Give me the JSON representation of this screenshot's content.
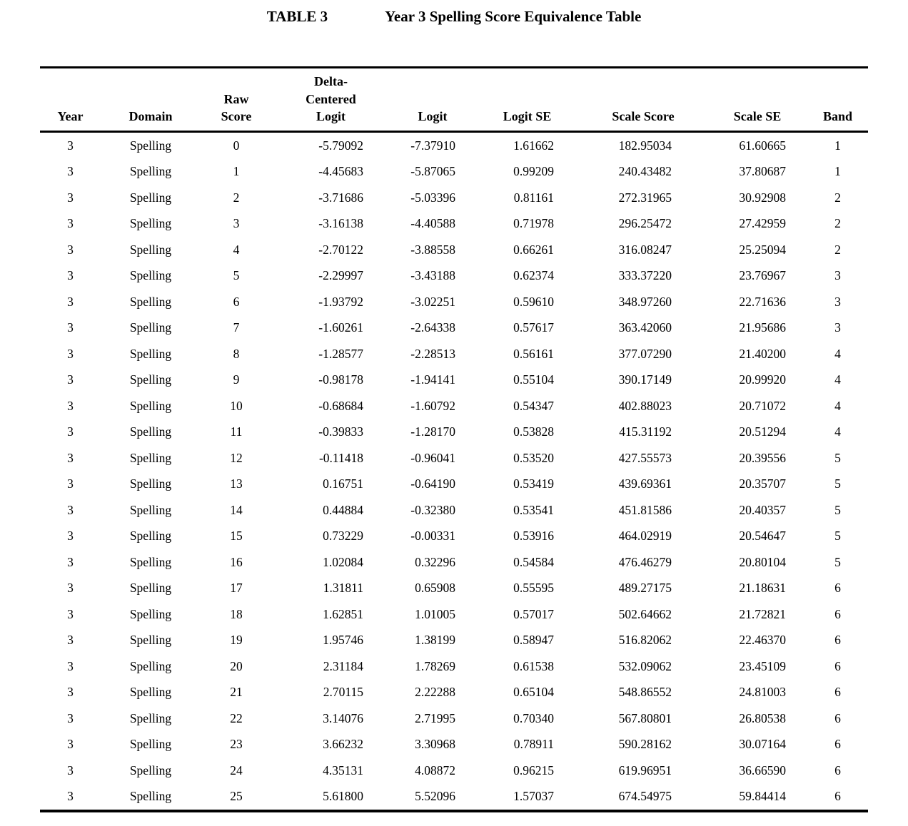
{
  "title": {
    "label": "TABLE 3",
    "caption": "Year 3 Spelling Score Equivalence Table"
  },
  "table": {
    "columns": [
      "Year",
      "Domain",
      "Raw\nScore",
      "Delta-\nCentered\nLogit",
      "Logit",
      "Logit SE",
      "Scale Score",
      "Scale SE",
      "Band"
    ],
    "rows": [
      [
        "3",
        "Spelling",
        "0",
        "-5.79092",
        "-7.37910",
        "1.61662",
        "182.95034",
        "61.60665",
        "1"
      ],
      [
        "3",
        "Spelling",
        "1",
        "-4.45683",
        "-5.87065",
        "0.99209",
        "240.43482",
        "37.80687",
        "1"
      ],
      [
        "3",
        "Spelling",
        "2",
        "-3.71686",
        "-5.03396",
        "0.81161",
        "272.31965",
        "30.92908",
        "2"
      ],
      [
        "3",
        "Spelling",
        "3",
        "-3.16138",
        "-4.40588",
        "0.71978",
        "296.25472",
        "27.42959",
        "2"
      ],
      [
        "3",
        "Spelling",
        "4",
        "-2.70122",
        "-3.88558",
        "0.66261",
        "316.08247",
        "25.25094",
        "2"
      ],
      [
        "3",
        "Spelling",
        "5",
        "-2.29997",
        "-3.43188",
        "0.62374",
        "333.37220",
        "23.76967",
        "3"
      ],
      [
        "3",
        "Spelling",
        "6",
        "-1.93792",
        "-3.02251",
        "0.59610",
        "348.97260",
        "22.71636",
        "3"
      ],
      [
        "3",
        "Spelling",
        "7",
        "-1.60261",
        "-2.64338",
        "0.57617",
        "363.42060",
        "21.95686",
        "3"
      ],
      [
        "3",
        "Spelling",
        "8",
        "-1.28577",
        "-2.28513",
        "0.56161",
        "377.07290",
        "21.40200",
        "4"
      ],
      [
        "3",
        "Spelling",
        "9",
        "-0.98178",
        "-1.94141",
        "0.55104",
        "390.17149",
        "20.99920",
        "4"
      ],
      [
        "3",
        "Spelling",
        "10",
        "-0.68684",
        "-1.60792",
        "0.54347",
        "402.88023",
        "20.71072",
        "4"
      ],
      [
        "3",
        "Spelling",
        "11",
        "-0.39833",
        "-1.28170",
        "0.53828",
        "415.31192",
        "20.51294",
        "4"
      ],
      [
        "3",
        "Spelling",
        "12",
        "-0.11418",
        "-0.96041",
        "0.53520",
        "427.55573",
        "20.39556",
        "5"
      ],
      [
        "3",
        "Spelling",
        "13",
        "0.16751",
        "-0.64190",
        "0.53419",
        "439.69361",
        "20.35707",
        "5"
      ],
      [
        "3",
        "Spelling",
        "14",
        "0.44884",
        "-0.32380",
        "0.53541",
        "451.81586",
        "20.40357",
        "5"
      ],
      [
        "3",
        "Spelling",
        "15",
        "0.73229",
        "-0.00331",
        "0.53916",
        "464.02919",
        "20.54647",
        "5"
      ],
      [
        "3",
        "Spelling",
        "16",
        "1.02084",
        "0.32296",
        "0.54584",
        "476.46279",
        "20.80104",
        "5"
      ],
      [
        "3",
        "Spelling",
        "17",
        "1.31811",
        "0.65908",
        "0.55595",
        "489.27175",
        "21.18631",
        "6"
      ],
      [
        "3",
        "Spelling",
        "18",
        "1.62851",
        "1.01005",
        "0.57017",
        "502.64662",
        "21.72821",
        "6"
      ],
      [
        "3",
        "Spelling",
        "19",
        "1.95746",
        "1.38199",
        "0.58947",
        "516.82062",
        "22.46370",
        "6"
      ],
      [
        "3",
        "Spelling",
        "20",
        "2.31184",
        "1.78269",
        "0.61538",
        "532.09062",
        "23.45109",
        "6"
      ],
      [
        "3",
        "Spelling",
        "21",
        "2.70115",
        "2.22288",
        "0.65104",
        "548.86552",
        "24.81003",
        "6"
      ],
      [
        "3",
        "Spelling",
        "22",
        "3.14076",
        "2.71995",
        "0.70340",
        "567.80801",
        "26.80538",
        "6"
      ],
      [
        "3",
        "Spelling",
        "23",
        "3.66232",
        "3.30968",
        "0.78911",
        "590.28162",
        "30.07164",
        "6"
      ],
      [
        "3",
        "Spelling",
        "24",
        "4.35131",
        "4.08872",
        "0.96215",
        "619.96951",
        "36.66590",
        "6"
      ],
      [
        "3",
        "Spelling",
        "25",
        "5.61800",
        "5.52096",
        "1.57037",
        "674.54975",
        "59.84414",
        "6"
      ]
    ]
  }
}
